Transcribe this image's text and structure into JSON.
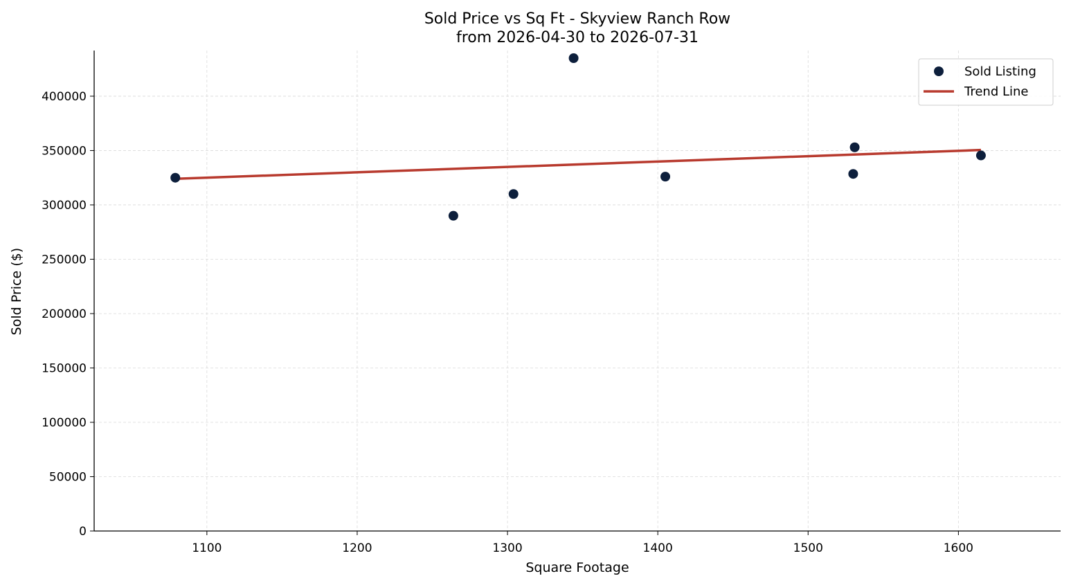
{
  "chart_data": {
    "type": "scatter",
    "title_line1": "Sold Price vs Sq Ft - Skyview Ranch Row",
    "title_line2": "from 2026-04-30 to 2026-07-31",
    "xlabel": "Square Footage",
    "ylabel": "Sold Price ($)",
    "xlim": [
      1025,
      1668
    ],
    "ylim": [
      0,
      442000
    ],
    "xticks": [
      1100,
      1200,
      1300,
      1400,
      1500,
      1600
    ],
    "yticks": [
      0,
      50000,
      100000,
      150000,
      200000,
      250000,
      300000,
      350000,
      400000
    ],
    "grid": true,
    "legend_position": "top-right",
    "series": [
      {
        "name": "Sold Listing",
        "kind": "scatter",
        "color": "#0d1f3c",
        "points": [
          {
            "x": 1079,
            "y": 325000
          },
          {
            "x": 1264,
            "y": 290000
          },
          {
            "x": 1304,
            "y": 310000
          },
          {
            "x": 1344,
            "y": 435000
          },
          {
            "x": 1405,
            "y": 326000
          },
          {
            "x": 1530,
            "y": 328500
          },
          {
            "x": 1531,
            "y": 353000
          },
          {
            "x": 1615,
            "y": 345500
          }
        ]
      },
      {
        "name": "Trend Line",
        "kind": "line",
        "color": "#b83a2e",
        "points": [
          {
            "x": 1079,
            "y": 324000
          },
          {
            "x": 1615,
            "y": 350500
          }
        ]
      }
    ]
  }
}
